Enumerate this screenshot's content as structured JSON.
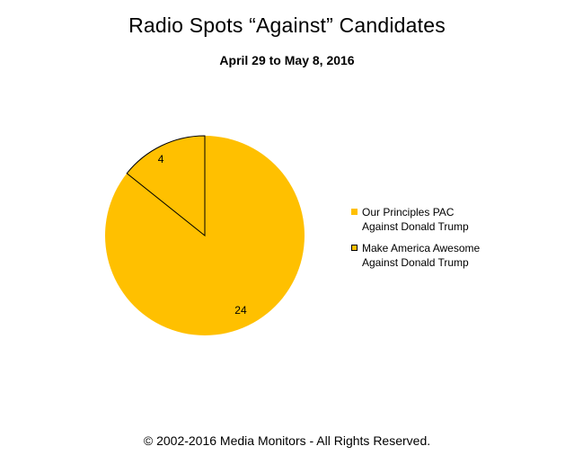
{
  "chart_data": {
    "type": "pie",
    "title": "Radio Spots “Against” Candidates",
    "subtitle": "April 29 to May 8, 2016",
    "slices": [
      {
        "label": "Our Principles PAC\nAgainst Donald Trump",
        "value": 24,
        "color": "#FFC000",
        "outlined": false
      },
      {
        "label": "Make America Awesome\nAgainst Donald Trump",
        "value": 4,
        "color": "#FFC000",
        "outlined": true
      }
    ],
    "legend_position": "right",
    "data_labels": true
  },
  "footer": {
    "text": "© 2002-2016 Media Monitors - All Rights Reserved."
  }
}
